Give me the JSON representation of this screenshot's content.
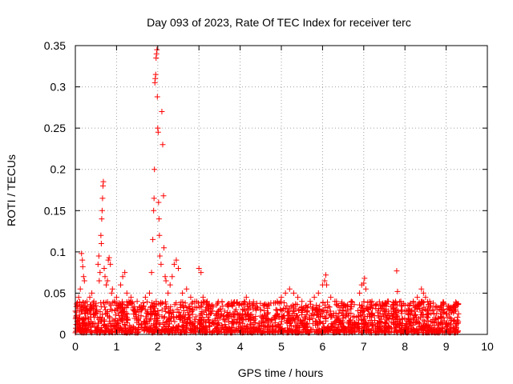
{
  "chart_data": {
    "type": "scatter",
    "title": "Day 093 of 2023, Rate Of TEC Index for receiver terc",
    "xlabel": "GPS time / hours",
    "ylabel": "ROTI / TECUs",
    "xlim": [
      0,
      10
    ],
    "ylim": [
      0,
      0.35
    ],
    "xticks": [
      0,
      1,
      2,
      3,
      4,
      5,
      6,
      7,
      8,
      9,
      10
    ],
    "xtick_labels": [
      "0",
      "1",
      "2",
      "3",
      "4",
      "5",
      "6",
      "7",
      "8",
      "9",
      "10"
    ],
    "yticks": [
      0,
      0.05,
      0.1,
      0.15,
      0.2,
      0.25,
      0.3,
      0.35
    ],
    "ytick_labels": [
      "0",
      "0.05",
      "0.1",
      "0.15",
      "0.2",
      "0.25",
      "0.3",
      "0.35"
    ],
    "grid": true,
    "marker": "+",
    "color": "#ff0000",
    "series": [
      {
        "name": "ROTI",
        "points": [
          [
            0.02,
            0.012
          ],
          [
            0.05,
            0.035
          ],
          [
            0.08,
            0.045
          ],
          [
            0.1,
            0.02
          ],
          [
            0.12,
            0.055
          ],
          [
            0.15,
            0.098
          ],
          [
            0.17,
            0.09
          ],
          [
            0.18,
            0.082
          ],
          [
            0.2,
            0.07
          ],
          [
            0.22,
            0.065
          ],
          [
            0.25,
            0.03
          ],
          [
            0.28,
            0.04
          ],
          [
            0.3,
            0.025
          ],
          [
            0.35,
            0.045
          ],
          [
            0.4,
            0.05
          ],
          [
            0.45,
            0.04
          ],
          [
            0.5,
            0.035
          ],
          [
            0.52,
            0.03
          ],
          [
            0.55,
            0.085
          ],
          [
            0.57,
            0.095
          ],
          [
            0.58,
            0.065
          ],
          [
            0.6,
            0.075
          ],
          [
            0.62,
            0.12
          ],
          [
            0.63,
            0.11
          ],
          [
            0.64,
            0.14
          ],
          [
            0.65,
            0.15
          ],
          [
            0.66,
            0.165
          ],
          [
            0.67,
            0.18
          ],
          [
            0.68,
            0.185
          ],
          [
            0.7,
            0.08
          ],
          [
            0.72,
            0.07
          ],
          [
            0.75,
            0.06
          ],
          [
            0.78,
            0.065
          ],
          [
            0.8,
            0.09
          ],
          [
            0.82,
            0.093
          ],
          [
            0.85,
            0.085
          ],
          [
            0.88,
            0.05
          ],
          [
            0.9,
            0.055
          ],
          [
            0.95,
            0.04
          ],
          [
            1.0,
            0.045
          ],
          [
            1.05,
            0.035
          ],
          [
            1.1,
            0.06
          ],
          [
            1.15,
            0.07
          ],
          [
            1.2,
            0.075
          ],
          [
            1.25,
            0.05
          ],
          [
            1.3,
            0.04
          ],
          [
            1.35,
            0.045
          ],
          [
            1.4,
            0.03
          ],
          [
            1.5,
            0.04
          ],
          [
            1.6,
            0.035
          ],
          [
            1.7,
            0.045
          ],
          [
            1.8,
            0.05
          ],
          [
            1.85,
            0.075
          ],
          [
            1.88,
            0.115
          ],
          [
            1.9,
            0.15
          ],
          [
            1.91,
            0.165
          ],
          [
            1.92,
            0.2
          ],
          [
            1.93,
            0.305
          ],
          [
            1.94,
            0.31
          ],
          [
            1.95,
            0.315
          ],
          [
            1.96,
            0.335
          ],
          [
            1.97,
            0.34
          ],
          [
            1.98,
            0.345
          ],
          [
            1.99,
            0.288
          ],
          [
            2.0,
            0.25
          ],
          [
            2.01,
            0.245
          ],
          [
            2.02,
            0.16
          ],
          [
            2.03,
            0.14
          ],
          [
            2.04,
            0.12
          ],
          [
            2.05,
            0.095
          ],
          [
            2.08,
            0.085
          ],
          [
            2.1,
            0.27
          ],
          [
            2.12,
            0.23
          ],
          [
            2.14,
            0.168
          ],
          [
            2.15,
            0.105
          ],
          [
            2.18,
            0.07
          ],
          [
            2.2,
            0.065
          ],
          [
            2.25,
            0.05
          ],
          [
            2.3,
            0.06
          ],
          [
            2.35,
            0.07
          ],
          [
            2.4,
            0.085
          ],
          [
            2.45,
            0.09
          ],
          [
            2.5,
            0.08
          ],
          [
            2.6,
            0.05
          ],
          [
            2.7,
            0.055
          ],
          [
            2.8,
            0.045
          ],
          [
            2.9,
            0.04
          ],
          [
            3.0,
            0.08
          ],
          [
            3.05,
            0.075
          ],
          [
            3.1,
            0.045
          ],
          [
            3.2,
            0.04
          ],
          [
            3.3,
            0.035
          ],
          [
            3.5,
            0.03
          ],
          [
            3.7,
            0.035
          ],
          [
            3.9,
            0.03
          ],
          [
            4.1,
            0.04
          ],
          [
            4.15,
            0.045
          ],
          [
            4.3,
            0.035
          ],
          [
            4.5,
            0.03
          ],
          [
            4.7,
            0.035
          ],
          [
            4.9,
            0.04
          ],
          [
            5.0,
            0.045
          ],
          [
            5.1,
            0.05
          ],
          [
            5.2,
            0.055
          ],
          [
            5.3,
            0.05
          ],
          [
            5.4,
            0.045
          ],
          [
            5.5,
            0.04
          ],
          [
            5.6,
            0.035
          ],
          [
            5.7,
            0.04
          ],
          [
            5.8,
            0.045
          ],
          [
            5.9,
            0.05
          ],
          [
            6.0,
            0.06
          ],
          [
            6.05,
            0.065
          ],
          [
            6.08,
            0.072
          ],
          [
            6.1,
            0.06
          ],
          [
            6.2,
            0.045
          ],
          [
            6.3,
            0.04
          ],
          [
            6.5,
            0.035
          ],
          [
            6.7,
            0.04
          ],
          [
            6.9,
            0.05
          ],
          [
            6.95,
            0.06
          ],
          [
            7.0,
            0.062
          ],
          [
            7.02,
            0.068
          ],
          [
            7.05,
            0.055
          ],
          [
            7.2,
            0.04
          ],
          [
            7.4,
            0.035
          ],
          [
            7.6,
            0.04
          ],
          [
            7.8,
            0.077
          ],
          [
            7.82,
            0.052
          ],
          [
            7.9,
            0.04
          ],
          [
            8.0,
            0.035
          ],
          [
            8.2,
            0.04
          ],
          [
            8.3,
            0.045
          ],
          [
            8.4,
            0.055
          ],
          [
            8.45,
            0.05
          ],
          [
            8.5,
            0.045
          ],
          [
            8.6,
            0.04
          ],
          [
            8.8,
            0.03
          ],
          [
            9.0,
            0.025
          ],
          [
            9.1,
            0.03
          ],
          [
            9.2,
            0.028
          ],
          [
            9.3,
            0.025
          ]
        ],
        "band": {
          "x_start": 0.0,
          "x_end": 9.3,
          "y_low": 0.002,
          "y_high": 0.04,
          "count": 2200
        }
      }
    ]
  }
}
